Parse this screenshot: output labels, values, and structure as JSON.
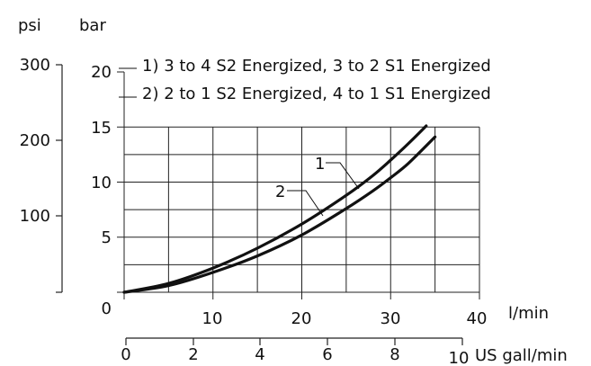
{
  "chart_data": {
    "type": "line",
    "units": {
      "left_outer": "psi",
      "left_inner": "bar",
      "x_primary": "l/min",
      "x_secondary": "US gall/min"
    },
    "xlim": [
      0,
      40
    ],
    "ylim": [
      0,
      20
    ],
    "x_ticks": [
      "0",
      "10",
      "20",
      "30",
      "40"
    ],
    "y_ticks_bar": [
      "0",
      "5",
      "10",
      "15",
      "20"
    ],
    "y_ticks_psi": [
      "300",
      "200",
      "100"
    ],
    "x_secondary_ticks": [
      "0",
      "2",
      "4",
      "6",
      "8",
      "10"
    ],
    "grid": true,
    "legend": {
      "items": [
        "1) 3 to 4 S2 Energized, 3 to 2 S1 Energized",
        "2) 2 to 1 S2 Energized, 4 to 1 S1 Energized"
      ]
    },
    "series": [
      {
        "name": "1",
        "x": [
          0,
          5,
          10,
          15,
          20,
          25,
          28,
          30,
          32,
          34
        ],
        "y": [
          0,
          0.8,
          2.2,
          4.0,
          6.2,
          8.8,
          10.6,
          12.0,
          13.5,
          15.1
        ]
      },
      {
        "name": "2",
        "x": [
          0,
          5,
          10,
          15,
          20,
          25,
          28,
          30,
          32,
          35
        ],
        "y": [
          0,
          0.6,
          1.8,
          3.3,
          5.2,
          7.6,
          9.2,
          10.4,
          11.7,
          14.1
        ]
      }
    ]
  }
}
